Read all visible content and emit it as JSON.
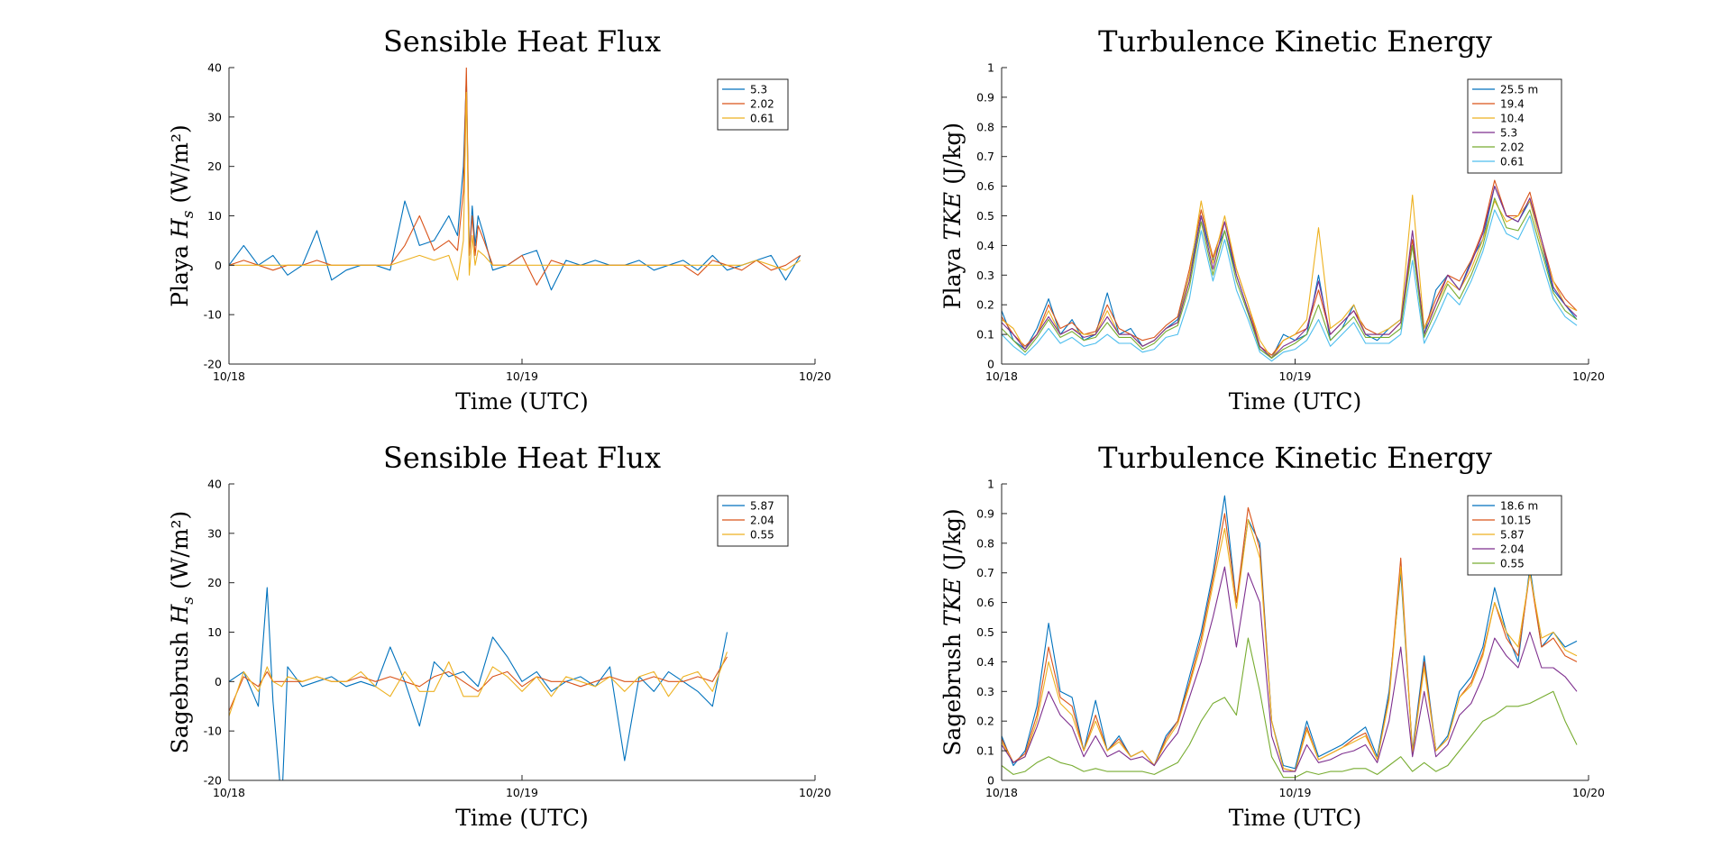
{
  "colors": [
    "#0072bd",
    "#d95319",
    "#edb120",
    "#7e2f8e",
    "#77ac30",
    "#4dbeee"
  ],
  "chart_data": [
    {
      "type": "line",
      "title": "Sensible Heat Flux",
      "ylabel_text": "Playa",
      "ylabel_symbol": "Hs",
      "ylabel_unit": "(W/m²)",
      "xlabel": "Time (UTC)",
      "xlim": [
        0,
        2
      ],
      "ylim": [
        -20,
        40
      ],
      "x_ticks": [
        "10/18",
        "10/19",
        "10/20"
      ],
      "y_ticks": [
        "-20",
        "-10",
        "0",
        "10",
        "20",
        "30",
        "40"
      ],
      "legend_position": "top-right",
      "x": [
        0,
        0.05,
        0.1,
        0.15,
        0.2,
        0.25,
        0.3,
        0.35,
        0.4,
        0.45,
        0.5,
        0.55,
        0.6,
        0.65,
        0.7,
        0.75,
        0.78,
        0.8,
        0.81,
        0.82,
        0.83,
        0.84,
        0.85,
        0.87,
        0.9,
        0.95,
        1.0,
        1.05,
        1.1,
        1.15,
        1.2,
        1.25,
        1.3,
        1.35,
        1.4,
        1.45,
        1.5,
        1.55,
        1.6,
        1.65,
        1.7,
        1.75,
        1.8,
        1.85,
        1.9,
        1.95
      ],
      "series": [
        {
          "name": "5.3",
          "values": [
            0,
            4,
            0,
            2,
            -2,
            0,
            7,
            -3,
            -1,
            0,
            0,
            -1,
            13,
            4,
            5,
            10,
            6,
            20,
            38,
            2,
            12,
            4,
            10,
            6,
            -1,
            0,
            2,
            3,
            -5,
            1,
            0,
            1,
            0,
            0,
            1,
            -1,
            0,
            1,
            -1,
            2,
            -1,
            0,
            1,
            2,
            -3,
            2
          ]
        },
        {
          "name": "2.02",
          "values": [
            0,
            1,
            0,
            -1,
            0,
            0,
            1,
            0,
            0,
            0,
            0,
            0,
            4,
            10,
            3,
            5,
            3,
            15,
            40,
            2,
            10,
            2,
            8,
            5,
            0,
            0,
            2,
            -4,
            1,
            0,
            0,
            0,
            0,
            0,
            0,
            0,
            0,
            0,
            -2,
            1,
            0,
            -1,
            1,
            -1,
            0,
            2
          ]
        },
        {
          "name": "0.61",
          "values": [
            0,
            0,
            0,
            0,
            0,
            0,
            0,
            0,
            0,
            0,
            0,
            0,
            1,
            2,
            1,
            2,
            -3,
            5,
            35,
            -2,
            6,
            0,
            3,
            2,
            0,
            0,
            0,
            0,
            0,
            0,
            0,
            0,
            0,
            0,
            0,
            0,
            0,
            0,
            0,
            0,
            0,
            0,
            1,
            0,
            -1,
            1
          ]
        }
      ]
    },
    {
      "type": "line",
      "title": "Turbulence Kinetic Energy",
      "ylabel_text": "Playa",
      "ylabel_symbol": "TKE",
      "ylabel_unit": "(J/kg)",
      "xlabel": "Time (UTC)",
      "xlim": [
        0,
        2
      ],
      "ylim": [
        0,
        1
      ],
      "x_ticks": [
        "10/18",
        "10/19",
        "10/20"
      ],
      "y_ticks": [
        "0",
        "0.1",
        "0.2",
        "0.3",
        "0.4",
        "0.5",
        "0.6",
        "0.7",
        "0.8",
        "0.9",
        "1"
      ],
      "legend_position": "top-right",
      "x": [
        0,
        0.04,
        0.08,
        0.12,
        0.16,
        0.2,
        0.24,
        0.28,
        0.32,
        0.36,
        0.4,
        0.44,
        0.48,
        0.52,
        0.56,
        0.6,
        0.64,
        0.68,
        0.72,
        0.76,
        0.8,
        0.84,
        0.88,
        0.92,
        0.96,
        1.0,
        1.04,
        1.08,
        1.12,
        1.16,
        1.2,
        1.24,
        1.28,
        1.32,
        1.36,
        1.4,
        1.44,
        1.48,
        1.52,
        1.56,
        1.6,
        1.64,
        1.68,
        1.72,
        1.76,
        1.8,
        1.84,
        1.88,
        1.92,
        1.96
      ],
      "series": [
        {
          "name": "25.5 m",
          "values": [
            0.18,
            0.08,
            0.05,
            0.12,
            0.22,
            0.1,
            0.15,
            0.08,
            0.1,
            0.24,
            0.1,
            0.12,
            0.06,
            0.08,
            0.12,
            0.15,
            0.3,
            0.5,
            0.35,
            0.45,
            0.3,
            0.18,
            0.05,
            0.02,
            0.1,
            0.08,
            0.1,
            0.3,
            0.08,
            0.12,
            0.2,
            0.1,
            0.08,
            0.12,
            0.15,
            0.4,
            0.1,
            0.25,
            0.3,
            0.25,
            0.35,
            0.42,
            0.6,
            0.5,
            0.48,
            0.55,
            0.4,
            0.25,
            0.2,
            0.15
          ]
        },
        {
          "name": "19.4",
          "values": [
            0.16,
            0.1,
            0.06,
            0.1,
            0.2,
            0.12,
            0.14,
            0.1,
            0.11,
            0.2,
            0.12,
            0.1,
            0.08,
            0.09,
            0.13,
            0.16,
            0.32,
            0.52,
            0.36,
            0.48,
            0.32,
            0.2,
            0.06,
            0.03,
            0.08,
            0.1,
            0.12,
            0.25,
            0.1,
            0.14,
            0.18,
            0.12,
            0.1,
            0.1,
            0.14,
            0.42,
            0.12,
            0.22,
            0.3,
            0.28,
            0.35,
            0.45,
            0.62,
            0.5,
            0.5,
            0.58,
            0.42,
            0.28,
            0.22,
            0.18
          ]
        },
        {
          "name": "10.4",
          "values": [
            0.15,
            0.12,
            0.05,
            0.1,
            0.18,
            0.1,
            0.12,
            0.1,
            0.1,
            0.18,
            0.1,
            0.1,
            0.06,
            0.08,
            0.12,
            0.14,
            0.3,
            0.55,
            0.34,
            0.5,
            0.32,
            0.2,
            0.08,
            0.02,
            0.08,
            0.1,
            0.15,
            0.46,
            0.12,
            0.15,
            0.2,
            0.1,
            0.1,
            0.12,
            0.15,
            0.57,
            0.12,
            0.2,
            0.28,
            0.25,
            0.32,
            0.42,
            0.55,
            0.48,
            0.5,
            0.55,
            0.4,
            0.28,
            0.2,
            0.18
          ]
        },
        {
          "name": "5.3",
          "values": [
            0.14,
            0.1,
            0.05,
            0.1,
            0.16,
            0.1,
            0.12,
            0.09,
            0.1,
            0.16,
            0.1,
            0.1,
            0.06,
            0.08,
            0.12,
            0.14,
            0.28,
            0.5,
            0.32,
            0.48,
            0.3,
            0.18,
            0.06,
            0.02,
            0.06,
            0.08,
            0.12,
            0.28,
            0.1,
            0.14,
            0.18,
            0.1,
            0.1,
            0.1,
            0.14,
            0.45,
            0.1,
            0.2,
            0.3,
            0.25,
            0.34,
            0.44,
            0.6,
            0.5,
            0.48,
            0.56,
            0.42,
            0.26,
            0.2,
            0.16
          ]
        },
        {
          "name": "2.02",
          "values": [
            0.12,
            0.08,
            0.04,
            0.09,
            0.15,
            0.09,
            0.11,
            0.08,
            0.09,
            0.14,
            0.09,
            0.09,
            0.05,
            0.07,
            0.11,
            0.13,
            0.26,
            0.48,
            0.3,
            0.45,
            0.28,
            0.17,
            0.05,
            0.02,
            0.05,
            0.07,
            0.1,
            0.2,
            0.08,
            0.12,
            0.16,
            0.09,
            0.09,
            0.09,
            0.12,
            0.4,
            0.09,
            0.18,
            0.27,
            0.22,
            0.3,
            0.4,
            0.56,
            0.46,
            0.45,
            0.52,
            0.38,
            0.24,
            0.18,
            0.15
          ]
        },
        {
          "name": "0.61",
          "values": [
            0.1,
            0.06,
            0.03,
            0.07,
            0.12,
            0.07,
            0.09,
            0.06,
            0.07,
            0.1,
            0.07,
            0.07,
            0.04,
            0.05,
            0.09,
            0.1,
            0.22,
            0.45,
            0.28,
            0.42,
            0.25,
            0.15,
            0.04,
            0.01,
            0.04,
            0.05,
            0.08,
            0.15,
            0.06,
            0.1,
            0.14,
            0.07,
            0.07,
            0.07,
            0.1,
            0.35,
            0.07,
            0.15,
            0.24,
            0.2,
            0.28,
            0.38,
            0.52,
            0.44,
            0.42,
            0.5,
            0.35,
            0.22,
            0.16,
            0.13
          ]
        }
      ]
    },
    {
      "type": "line",
      "title": "Sensible Heat Flux",
      "ylabel_text": "Sagebrush",
      "ylabel_symbol": "Hs",
      "ylabel_unit": "(W/m²)",
      "xlabel": "Time (UTC)",
      "xlim": [
        0,
        2
      ],
      "ylim": [
        -20,
        40
      ],
      "x_ticks": [
        "10/18",
        "10/19",
        "10/20"
      ],
      "y_ticks": [
        "-20",
        "-10",
        "0",
        "10",
        "20",
        "30",
        "40"
      ],
      "legend_position": "top-right",
      "x": [
        0,
        0.05,
        0.1,
        0.13,
        0.15,
        0.18,
        0.2,
        0.25,
        0.3,
        0.35,
        0.4,
        0.45,
        0.5,
        0.55,
        0.6,
        0.65,
        0.7,
        0.75,
        0.8,
        0.85,
        0.9,
        0.95,
        1.0,
        1.05,
        1.1,
        1.15,
        1.2,
        1.25,
        1.3,
        1.35,
        1.4,
        1.45,
        1.5,
        1.55,
        1.6,
        1.65,
        1.7
      ],
      "series": [
        {
          "name": "5.87",
          "values": [
            0,
            2,
            -5,
            19,
            -4,
            -25,
            3,
            -1,
            0,
            1,
            -1,
            0,
            -1,
            7,
            0,
            -9,
            4,
            1,
            2,
            -1,
            9,
            5,
            0,
            2,
            -2,
            0,
            1,
            -1,
            3,
            -16,
            1,
            -2,
            2,
            0,
            -2,
            -5,
            10
          ]
        },
        {
          "name": "2.04",
          "values": [
            -6,
            1,
            -1,
            2,
            0,
            0,
            0,
            0,
            1,
            0,
            0,
            1,
            0,
            1,
            0,
            -1,
            1,
            2,
            0,
            -2,
            1,
            2,
            -1,
            1,
            0,
            0,
            -1,
            0,
            1,
            0,
            0,
            1,
            0,
            0,
            1,
            0,
            5
          ]
        },
        {
          "name": "0.55",
          "values": [
            -7,
            2,
            -2,
            3,
            0,
            -1,
            1,
            0,
            1,
            0,
            0,
            2,
            -1,
            -3,
            2,
            -2,
            -2,
            4,
            -3,
            -3,
            3,
            1,
            -2,
            1,
            -3,
            1,
            0,
            -1,
            1,
            -2,
            1,
            2,
            -3,
            1,
            2,
            -2,
            6
          ]
        }
      ]
    },
    {
      "type": "line",
      "title": "Turbulence Kinetic Energy",
      "ylabel_text": "Sagebrush",
      "ylabel_symbol": "TKE",
      "ylabel_unit": "(J/kg)",
      "xlabel": "Time (UTC)",
      "xlim": [
        0,
        2
      ],
      "ylim": [
        0,
        1
      ],
      "x_ticks": [
        "10/18",
        "10/19",
        "10/20"
      ],
      "y_ticks": [
        "0",
        "0.1",
        "0.2",
        "0.3",
        "0.4",
        "0.5",
        "0.6",
        "0.7",
        "0.8",
        "0.9",
        "1"
      ],
      "legend_position": "top-right",
      "x": [
        0,
        0.04,
        0.08,
        0.12,
        0.16,
        0.2,
        0.24,
        0.28,
        0.32,
        0.36,
        0.4,
        0.44,
        0.48,
        0.52,
        0.56,
        0.6,
        0.64,
        0.68,
        0.72,
        0.76,
        0.8,
        0.84,
        0.88,
        0.92,
        0.96,
        1.0,
        1.04,
        1.08,
        1.12,
        1.16,
        1.2,
        1.24,
        1.28,
        1.32,
        1.36,
        1.4,
        1.44,
        1.48,
        1.52,
        1.56,
        1.6,
        1.64,
        1.68,
        1.72,
        1.76,
        1.8,
        1.84,
        1.88,
        1.92,
        1.96
      ],
      "series": [
        {
          "name": "18.6 m",
          "values": [
            0.15,
            0.05,
            0.1,
            0.25,
            0.53,
            0.3,
            0.28,
            0.1,
            0.27,
            0.1,
            0.15,
            0.08,
            0.1,
            0.05,
            0.15,
            0.2,
            0.35,
            0.5,
            0.7,
            0.96,
            0.6,
            0.88,
            0.8,
            0.2,
            0.05,
            0.04,
            0.2,
            0.08,
            0.1,
            0.12,
            0.15,
            0.18,
            0.08,
            0.3,
            0.7,
            0.1,
            0.42,
            0.1,
            0.15,
            0.3,
            0.35,
            0.45,
            0.65,
            0.5,
            0.4,
            0.72,
            0.45,
            0.5,
            0.45,
            0.47
          ]
        },
        {
          "name": "10.15",
          "values": [
            0.14,
            0.06,
            0.09,
            0.22,
            0.45,
            0.28,
            0.25,
            0.1,
            0.22,
            0.1,
            0.14,
            0.08,
            0.1,
            0.05,
            0.14,
            0.2,
            0.33,
            0.48,
            0.68,
            0.9,
            0.6,
            0.92,
            0.78,
            0.2,
            0.04,
            0.03,
            0.18,
            0.07,
            0.09,
            0.11,
            0.14,
            0.16,
            0.07,
            0.28,
            0.75,
            0.09,
            0.4,
            0.1,
            0.14,
            0.28,
            0.33,
            0.43,
            0.6,
            0.48,
            0.42,
            0.7,
            0.45,
            0.48,
            0.42,
            0.4
          ]
        },
        {
          "name": "5.87",
          "values": [
            0.13,
            0.06,
            0.08,
            0.2,
            0.4,
            0.26,
            0.22,
            0.1,
            0.2,
            0.1,
            0.13,
            0.08,
            0.1,
            0.05,
            0.13,
            0.19,
            0.32,
            0.46,
            0.66,
            0.85,
            0.58,
            0.88,
            0.75,
            0.2,
            0.04,
            0.03,
            0.17,
            0.07,
            0.09,
            0.11,
            0.13,
            0.15,
            0.07,
            0.27,
            0.72,
            0.09,
            0.38,
            0.1,
            0.14,
            0.28,
            0.32,
            0.42,
            0.6,
            0.5,
            0.45,
            0.7,
            0.48,
            0.5,
            0.44,
            0.42
          ]
        },
        {
          "name": "2.04",
          "values": [
            0.12,
            0.06,
            0.08,
            0.18,
            0.3,
            0.22,
            0.18,
            0.08,
            0.15,
            0.08,
            0.1,
            0.07,
            0.08,
            0.05,
            0.11,
            0.16,
            0.28,
            0.4,
            0.55,
            0.72,
            0.45,
            0.7,
            0.6,
            0.15,
            0.03,
            0.03,
            0.12,
            0.06,
            0.07,
            0.09,
            0.1,
            0.12,
            0.06,
            0.2,
            0.45,
            0.08,
            0.3,
            0.08,
            0.12,
            0.22,
            0.26,
            0.35,
            0.48,
            0.42,
            0.38,
            0.5,
            0.38,
            0.38,
            0.35,
            0.3
          ]
        },
        {
          "name": "0.55",
          "values": [
            0.05,
            0.02,
            0.03,
            0.06,
            0.08,
            0.06,
            0.05,
            0.03,
            0.04,
            0.03,
            0.03,
            0.03,
            0.03,
            0.02,
            0.04,
            0.06,
            0.12,
            0.2,
            0.26,
            0.28,
            0.22,
            0.48,
            0.3,
            0.08,
            0.01,
            0.01,
            0.03,
            0.02,
            0.03,
            0.03,
            0.04,
            0.04,
            0.02,
            0.05,
            0.08,
            0.03,
            0.06,
            0.03,
            0.05,
            0.1,
            0.15,
            0.2,
            0.22,
            0.25,
            0.25,
            0.26,
            0.28,
            0.3,
            0.2,
            0.12
          ]
        }
      ]
    }
  ]
}
